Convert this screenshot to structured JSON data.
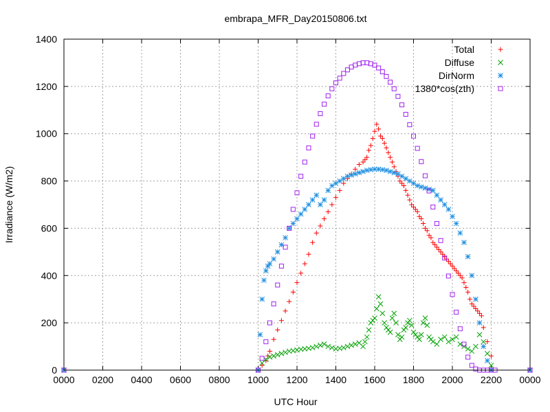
{
  "chart_data": {
    "type": "scatter",
    "title": "embrapa_MFR_Day20150806.txt",
    "xlabel": "UTC Hour",
    "ylabel": "Irradiance (W/m2)",
    "xlim": [
      0,
      24
    ],
    "ylim": [
      0,
      1400
    ],
    "grid": true,
    "legend_position": "top-right",
    "x_ticks": [
      {
        "value": 0,
        "label": "0000"
      },
      {
        "value": 2,
        "label": "0200"
      },
      {
        "value": 4,
        "label": "0400"
      },
      {
        "value": 6,
        "label": "0600"
      },
      {
        "value": 8,
        "label": "0800"
      },
      {
        "value": 10,
        "label": "1000"
      },
      {
        "value": 12,
        "label": "1200"
      },
      {
        "value": 14,
        "label": "1400"
      },
      {
        "value": 16,
        "label": "1600"
      },
      {
        "value": 18,
        "label": "1800"
      },
      {
        "value": 20,
        "label": "2000"
      },
      {
        "value": 22,
        "label": "2200"
      },
      {
        "value": 24,
        "label": "0000"
      }
    ],
    "y_ticks": [
      {
        "value": 0,
        "label": "0"
      },
      {
        "value": 200,
        "label": "200"
      },
      {
        "value": 400,
        "label": "400"
      },
      {
        "value": 600,
        "label": "600"
      },
      {
        "value": 800,
        "label": "800"
      },
      {
        "value": 1000,
        "label": "1000"
      },
      {
        "value": 1200,
        "label": "1200"
      },
      {
        "value": 1400,
        "label": "1400"
      }
    ],
    "series": [
      {
        "name": "Total",
        "marker": "plus",
        "color": "#ff0000",
        "x": [
          0,
          10.0,
          10.2,
          10.4,
          10.5,
          10.6,
          10.8,
          11.0,
          11.2,
          11.4,
          11.6,
          11.8,
          12.0,
          12.2,
          12.4,
          12.6,
          12.8,
          13.0,
          13.2,
          13.4,
          13.6,
          13.8,
          14.0,
          14.2,
          14.4,
          14.6,
          14.8,
          15.0,
          15.2,
          15.4,
          15.5,
          15.6,
          15.7,
          15.8,
          15.9,
          16.0,
          16.1,
          16.2,
          16.3,
          16.4,
          16.5,
          16.6,
          16.7,
          16.8,
          16.9,
          17.0,
          17.1,
          17.2,
          17.3,
          17.4,
          17.5,
          17.6,
          17.7,
          17.8,
          17.9,
          18.0,
          18.1,
          18.2,
          18.3,
          18.4,
          18.5,
          18.6,
          18.7,
          18.8,
          18.9,
          19.0,
          19.1,
          19.2,
          19.3,
          19.4,
          19.5,
          19.6,
          19.7,
          19.8,
          19.9,
          20.0,
          20.1,
          20.2,
          20.3,
          20.4,
          20.5,
          20.6,
          20.7,
          20.8,
          20.9,
          21.0,
          21.1,
          21.2,
          21.3,
          21.4,
          21.5,
          21.6,
          21.8,
          22.0,
          24
        ],
        "y": [
          0,
          0,
          20,
          40,
          60,
          80,
          130,
          170,
          210,
          250,
          290,
          330,
          370,
          410,
          450,
          490,
          540,
          580,
          610,
          640,
          670,
          700,
          730,
          760,
          790,
          810,
          830,
          850,
          870,
          880,
          890,
          900,
          930,
          950,
          980,
          1010,
          1040,
          1020,
          990,
          980,
          960,
          940,
          920,
          900,
          880,
          860,
          840,
          820,
          800,
          790,
          780,
          760,
          740,
          720,
          700,
          690,
          680,
          670,
          650,
          640,
          620,
          600,
          590,
          570,
          560,
          540,
          530,
          520,
          510,
          500,
          490,
          480,
          470,
          460,
          450,
          440,
          430,
          420,
          410,
          400,
          390,
          370,
          350,
          330,
          300,
          280,
          270,
          260,
          250,
          240,
          230,
          180,
          120,
          60,
          0
        ]
      },
      {
        "name": "Diffuse",
        "marker": "cross",
        "color": "#00a000",
        "x": [
          0,
          10.0,
          10.2,
          10.4,
          10.6,
          10.8,
          11.0,
          11.2,
          11.4,
          11.6,
          11.8,
          12.0,
          12.2,
          12.4,
          12.6,
          12.8,
          13.0,
          13.2,
          13.4,
          13.6,
          13.8,
          14.0,
          14.2,
          14.4,
          14.6,
          14.8,
          15.0,
          15.2,
          15.4,
          15.5,
          15.6,
          15.7,
          15.8,
          15.9,
          16.0,
          16.1,
          16.2,
          16.3,
          16.4,
          16.5,
          16.6,
          16.7,
          16.8,
          16.9,
          17.0,
          17.1,
          17.2,
          17.3,
          17.4,
          17.5,
          17.6,
          17.7,
          17.8,
          17.9,
          18.0,
          18.1,
          18.2,
          18.3,
          18.4,
          18.5,
          18.6,
          18.7,
          18.8,
          18.9,
          19.0,
          19.2,
          19.4,
          19.6,
          19.8,
          20.0,
          20.2,
          20.4,
          20.6,
          20.8,
          21.0,
          21.2,
          21.4,
          21.6,
          21.8,
          22.0,
          24
        ],
        "y": [
          0,
          0,
          30,
          45,
          55,
          60,
          65,
          70,
          75,
          80,
          82,
          85,
          88,
          90,
          92,
          95,
          100,
          105,
          110,
          100,
          95,
          90,
          92,
          95,
          100,
          105,
          110,
          115,
          100,
          120,
          140,
          170,
          200,
          210,
          220,
          260,
          310,
          280,
          240,
          200,
          180,
          170,
          160,
          220,
          240,
          200,
          150,
          130,
          140,
          170,
          180,
          200,
          210,
          190,
          160,
          150,
          140,
          130,
          150,
          200,
          220,
          190,
          140,
          130,
          120,
          110,
          130,
          140,
          120,
          130,
          140,
          110,
          100,
          90,
          80,
          100,
          150,
          120,
          70,
          20,
          0
        ]
      },
      {
        "name": "DirNorm",
        "marker": "star",
        "color": "#1f8fe0",
        "x": [
          0,
          10.0,
          10.1,
          10.2,
          10.3,
          10.4,
          10.5,
          10.6,
          10.8,
          11.0,
          11.2,
          11.4,
          11.6,
          11.8,
          12.0,
          12.2,
          12.4,
          12.6,
          12.8,
          13.0,
          13.2,
          13.4,
          13.6,
          13.8,
          14.0,
          14.2,
          14.4,
          14.6,
          14.8,
          15.0,
          15.2,
          15.4,
          15.6,
          15.8,
          16.0,
          16.2,
          16.4,
          16.6,
          16.8,
          17.0,
          17.2,
          17.4,
          17.6,
          17.8,
          18.0,
          18.2,
          18.4,
          18.6,
          18.8,
          19.0,
          19.2,
          19.4,
          19.6,
          19.8,
          20.0,
          20.2,
          20.4,
          20.6,
          20.8,
          21.0,
          21.2,
          21.4,
          21.6,
          21.8,
          22.0,
          24
        ],
        "y": [
          0,
          0,
          150,
          300,
          380,
          420,
          440,
          450,
          470,
          500,
          530,
          560,
          600,
          620,
          640,
          660,
          680,
          700,
          720,
          740,
          700,
          720,
          760,
          780,
          790,
          800,
          810,
          820,
          825,
          830,
          835,
          840,
          845,
          848,
          850,
          850,
          848,
          845,
          840,
          835,
          830,
          820,
          810,
          800,
          790,
          780,
          775,
          770,
          765,
          760,
          740,
          720,
          700,
          680,
          650,
          620,
          580,
          540,
          480,
          400,
          300,
          200,
          100,
          40,
          0,
          0
        ]
      },
      {
        "name": "1380*cos(zth)",
        "marker": "square",
        "color": "#a020f0",
        "x": [
          0,
          10.0,
          10.2,
          10.4,
          10.6,
          10.8,
          11.0,
          11.2,
          11.4,
          11.6,
          11.8,
          12.0,
          12.2,
          12.4,
          12.6,
          12.8,
          13.0,
          13.2,
          13.4,
          13.6,
          13.8,
          14.0,
          14.2,
          14.4,
          14.6,
          14.8,
          15.0,
          15.2,
          15.4,
          15.6,
          15.8,
          16.0,
          16.2,
          16.4,
          16.6,
          16.8,
          17.0,
          17.2,
          17.4,
          17.6,
          17.8,
          18.0,
          18.2,
          18.4,
          18.6,
          18.8,
          19.0,
          19.2,
          19.4,
          19.6,
          19.8,
          20.0,
          20.2,
          20.4,
          20.6,
          20.8,
          21.0,
          21.2,
          21.4,
          21.6,
          21.8,
          22.0,
          22.2,
          24
        ],
        "y": [
          0,
          0,
          50,
          120,
          200,
          280,
          360,
          440,
          520,
          600,
          680,
          750,
          820,
          880,
          940,
          990,
          1040,
          1085,
          1125,
          1160,
          1190,
          1215,
          1235,
          1255,
          1270,
          1282,
          1290,
          1296,
          1300,
          1300,
          1296,
          1290,
          1278,
          1262,
          1242,
          1218,
          1190,
          1158,
          1122,
          1082,
          1038,
          990,
          938,
          882,
          822,
          758,
          690,
          620,
          548,
          474,
          398,
          320,
          245,
          175,
          110,
          55,
          20,
          5,
          0,
          0,
          0,
          0,
          0,
          0
        ]
      }
    ]
  }
}
